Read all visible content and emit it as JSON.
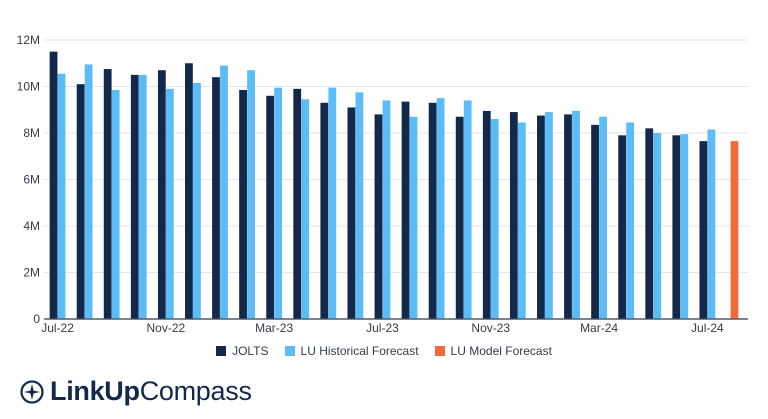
{
  "chart_data": {
    "type": "bar",
    "categories": [
      "Jul-22",
      "Aug-22",
      "Sep-22",
      "Oct-22",
      "Nov-22",
      "Dec-22",
      "Jan-23",
      "Feb-23",
      "Mar-23",
      "Apr-23",
      "May-23",
      "Jun-23",
      "Jul-23",
      "Aug-23",
      "Sep-23",
      "Oct-23",
      "Nov-23",
      "Dec-23",
      "Jan-24",
      "Feb-24",
      "Mar-24",
      "Apr-24",
      "May-24",
      "Jun-24",
      "Jul-24",
      "Aug-24"
    ],
    "x_tick_labels": [
      "Jul-22",
      "Nov-22",
      "Mar-23",
      "Jul-23",
      "Nov-23",
      "Mar-24",
      "Jul-24"
    ],
    "y_tick_labels": [
      "0",
      "2M",
      "4M",
      "6M",
      "8M",
      "10M",
      "12M"
    ],
    "ylim": [
      0,
      12000000
    ],
    "grid": true,
    "legend_position": "bottom",
    "series": [
      {
        "name": "JOLTS",
        "color": "#13284a",
        "values": [
          11500000,
          10100000,
          10750000,
          10500000,
          10700000,
          11000000,
          10400000,
          9850000,
          9600000,
          9900000,
          9300000,
          9100000,
          8800000,
          9350000,
          9300000,
          8700000,
          8950000,
          8900000,
          8750000,
          8800000,
          8350000,
          7900000,
          8200000,
          7900000,
          7650000,
          null
        ]
      },
      {
        "name": "LU Historical Forecast",
        "color": "#5bbcf7",
        "values": [
          10550000,
          10950000,
          9850000,
          10500000,
          9900000,
          10150000,
          10900000,
          10700000,
          9950000,
          9450000,
          9950000,
          9750000,
          9400000,
          8700000,
          9500000,
          9400000,
          8600000,
          8450000,
          8900000,
          8950000,
          8700000,
          8450000,
          8000000,
          7950000,
          8150000,
          null
        ]
      },
      {
        "name": "LU Model Forecast",
        "color": "#f26a3b",
        "values": [
          null,
          null,
          null,
          null,
          null,
          null,
          null,
          null,
          null,
          null,
          null,
          null,
          null,
          null,
          null,
          null,
          null,
          null,
          null,
          null,
          null,
          null,
          null,
          null,
          null,
          7650000
        ]
      }
    ]
  },
  "brand": {
    "bold": "LinkUp",
    "light": "Compass",
    "icon": "compass-icon"
  }
}
